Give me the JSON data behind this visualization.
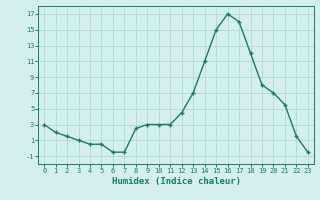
{
  "x": [
    0,
    1,
    2,
    3,
    4,
    5,
    6,
    7,
    8,
    9,
    10,
    11,
    12,
    13,
    14,
    15,
    16,
    17,
    18,
    19,
    20,
    21,
    22,
    23
  ],
  "y": [
    3,
    2,
    1.5,
    1,
    0.5,
    0.5,
    -0.5,
    -0.5,
    2.5,
    3,
    3,
    3,
    4.5,
    7,
    11,
    15,
    17,
    16,
    12,
    8,
    7,
    5.5,
    1.5,
    -0.5
  ],
  "xlabel": "Humidex (Indice chaleur)",
  "line_color": "#1a7a6a",
  "bg_color": "#d4efef",
  "grid_color": "#b0d8d8",
  "ylim": [
    -2,
    18
  ],
  "xlim": [
    -0.5,
    23.5
  ],
  "yticks": [
    -1,
    1,
    3,
    5,
    7,
    9,
    11,
    13,
    15,
    17
  ],
  "xticks": [
    0,
    1,
    2,
    3,
    4,
    5,
    6,
    7,
    8,
    9,
    10,
    11,
    12,
    13,
    14,
    15,
    16,
    17,
    18,
    19,
    20,
    21,
    22,
    23
  ]
}
